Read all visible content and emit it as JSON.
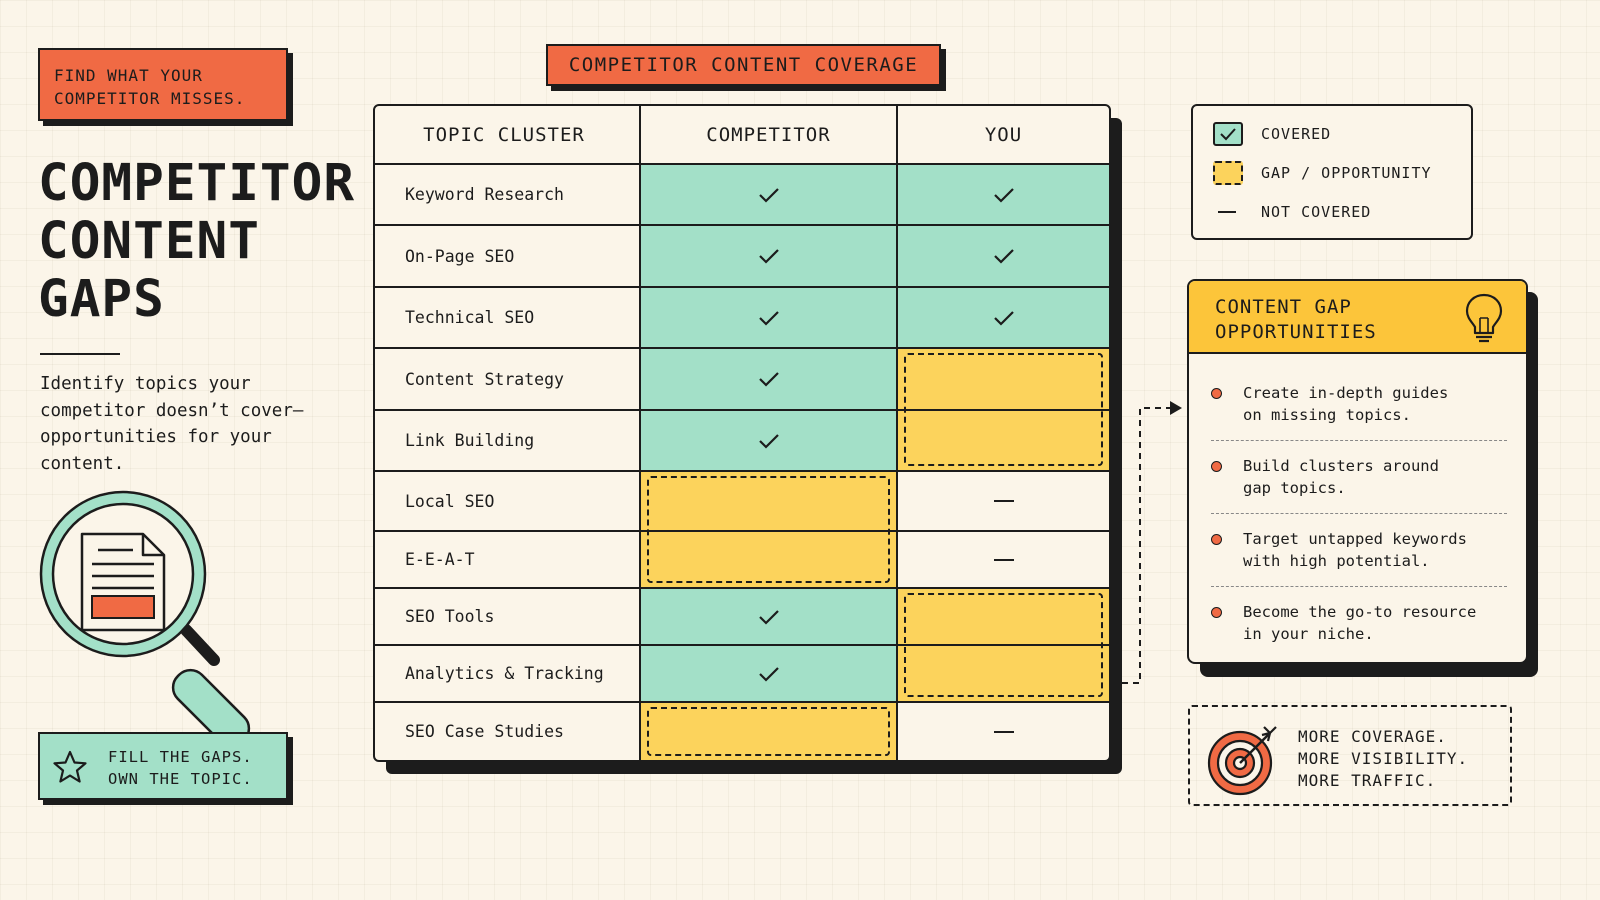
{
  "tag": {
    "line1": "FIND WHAT YOUR",
    "line2": "COMPETITOR MISSES."
  },
  "title": {
    "line1": "COMPETITOR",
    "line2": "CONTENT",
    "line3": "GAPS"
  },
  "description": "Identify topics your competitor doesn’t cover—opportunities for your content.",
  "illustration": {
    "icon": "magnifying-glass-document-icon"
  },
  "fill_banner": {
    "line1": "FILL THE GAPS.",
    "line2": "OWN THE TOPIC.",
    "icon": "star-icon"
  },
  "table": {
    "title": "COMPETITOR CONTENT COVERAGE",
    "headers": [
      "TOPIC CLUSTER",
      "COMPETITOR",
      "YOU"
    ],
    "rows": [
      {
        "topic": "Keyword Research",
        "competitor": "covered",
        "you": "covered"
      },
      {
        "topic": "On-Page SEO",
        "competitor": "covered",
        "you": "covered"
      },
      {
        "topic": "Technical SEO",
        "competitor": "covered",
        "you": "covered"
      },
      {
        "topic": "Content Strategy",
        "competitor": "covered",
        "you": "gap"
      },
      {
        "topic": "Link Building",
        "competitor": "covered",
        "you": "gap"
      },
      {
        "topic": "Local SEO",
        "competitor": "gap",
        "you": "not_covered"
      },
      {
        "topic": "E-E-A-T",
        "competitor": "gap",
        "you": "not_covered"
      },
      {
        "topic": "SEO Tools",
        "competitor": "covered",
        "you": "gap"
      },
      {
        "topic": "Analytics & Tracking",
        "competitor": "covered",
        "you": "gap"
      },
      {
        "topic": "SEO Case Studies",
        "competitor": "gap",
        "you": "not_covered"
      }
    ]
  },
  "legend": {
    "covered": "COVERED",
    "gap": "GAP / OPPORTUNITY",
    "not_covered": "NOT COVERED"
  },
  "opportunities": {
    "title_line1": "CONTENT GAP",
    "title_line2": "OPPORTUNITIES",
    "icon": "lightbulb-icon",
    "items": [
      {
        "line1": "Create in-depth guides",
        "line2": "on missing topics."
      },
      {
        "line1": "Build clusters around",
        "line2": "gap topics."
      },
      {
        "line1": "Target untapped keywords",
        "line2": "with high potential."
      },
      {
        "line1": "Become the go-to resource",
        "line2": "in your niche."
      }
    ]
  },
  "outcome": {
    "line1": "MORE COVERAGE.",
    "line2": "MORE VISIBILITY.",
    "line3": "MORE TRAFFIC.",
    "icon": "target-icon"
  },
  "colors": {
    "background": "#fbf5e9",
    "orange": "#f06a44",
    "mint": "#a3e0c8",
    "yellow": "#fcd35c",
    "gold": "#fcc53a",
    "ink": "#1c1c1c"
  }
}
